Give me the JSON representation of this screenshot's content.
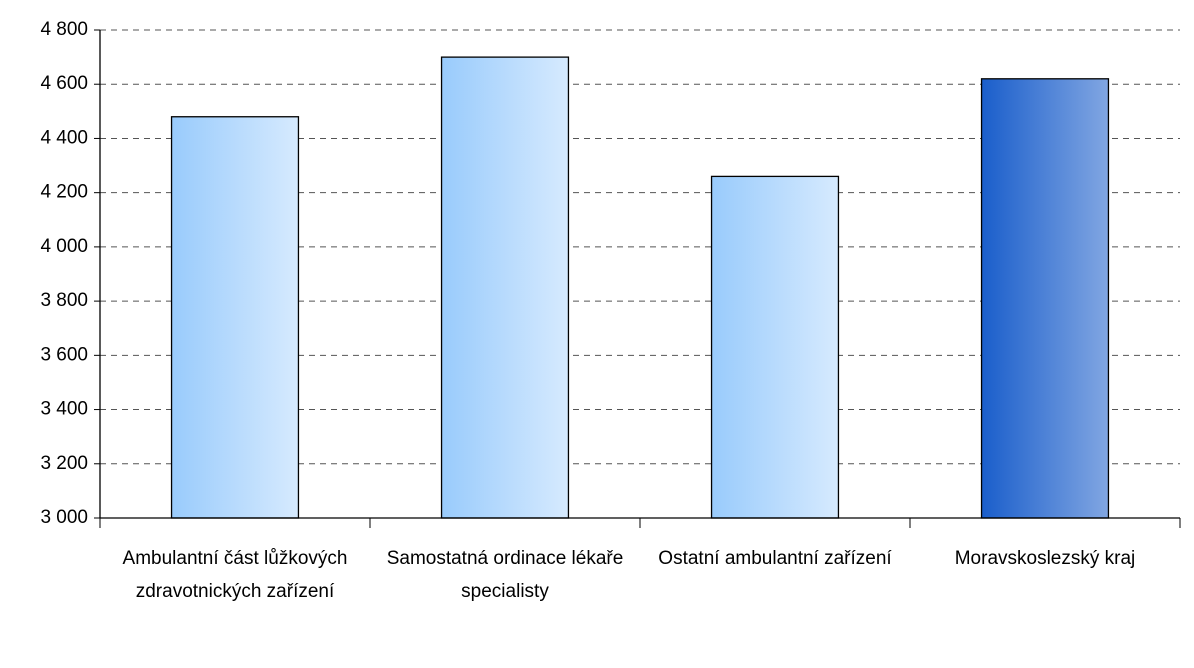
{
  "chart_data": {
    "type": "bar",
    "categories": [
      "Ambulantní část lůžkových zdravotnických zařízení",
      "Samostatná ordinace lékaře specialisty",
      "Ostatní ambulantní zařízení",
      "Moravskoslezský kraj"
    ],
    "values": [
      4480,
      4700,
      4260,
      4620
    ],
    "colors": [
      "#99cbfc",
      "#99cbfc",
      "#99cbfc",
      "#1a5ecb"
    ],
    "ylim": [
      3000,
      4800
    ],
    "yticks": [
      {
        "value": 3000,
        "label": "3 000"
      },
      {
        "value": 3200,
        "label": "3 200"
      },
      {
        "value": 3400,
        "label": "3 400"
      },
      {
        "value": 3600,
        "label": "3 600"
      },
      {
        "value": 3800,
        "label": "3 800"
      },
      {
        "value": 4000,
        "label": "4 000"
      },
      {
        "value": 4200,
        "label": "4 200"
      },
      {
        "value": 4400,
        "label": "4 400"
      },
      {
        "value": 4600,
        "label": "4 600"
      },
      {
        "value": 4800,
        "label": "4 800"
      }
    ],
    "grid": true
  }
}
